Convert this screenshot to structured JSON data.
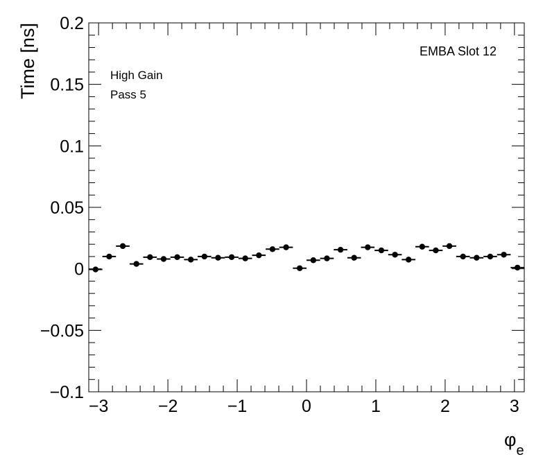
{
  "chart_data": {
    "type": "scatter",
    "title": "",
    "xlabel": "φ",
    "xlabel_sub": "e",
    "ylabel": "Time [ns]",
    "xlim": [
      -3.1416,
      3.1416
    ],
    "ylim": [
      -0.1,
      0.2
    ],
    "x_ticks": [
      -3,
      -2,
      -1,
      0,
      1,
      2,
      3
    ],
    "x_tick_labels": [
      "−3",
      "−2",
      "−1",
      "0",
      "1",
      "2",
      "3"
    ],
    "y_ticks": [
      -0.1,
      -0.05,
      0,
      0.05,
      0.1,
      0.15,
      0.2
    ],
    "y_tick_labels": [
      "−0.1",
      "−0.05",
      "0",
      "0.05",
      "0.1",
      "0.15",
      "0.2"
    ],
    "grid": false,
    "annotations": {
      "top_right": "EMBA Slot 12",
      "line1": "High Gain",
      "line2": "Pass 5"
    },
    "bin_half_width": 0.0982,
    "series": [
      {
        "x": [
          -3.0434,
          -2.8471,
          -2.6507,
          -2.4544,
          -2.258,
          -2.0617,
          -1.8653,
          -1.669,
          -1.4726,
          -1.2763,
          -1.0799,
          -0.8836,
          -0.6872,
          -0.4909,
          -0.2945,
          -0.0982,
          0.0982,
          0.2945,
          0.4909,
          0.6872,
          0.8836,
          1.0799,
          1.2763,
          1.4726,
          1.669,
          1.8653,
          2.0617,
          2.258,
          2.4544,
          2.6507,
          2.8471,
          3.0434
        ],
        "y": [
          -0.0005,
          0.01,
          0.0185,
          0.004,
          0.0095,
          0.008,
          0.0095,
          0.0075,
          0.01,
          0.009,
          0.0095,
          0.0085,
          0.011,
          0.016,
          0.0175,
          0.0005,
          0.007,
          0.0085,
          0.0155,
          0.009,
          0.0175,
          0.015,
          0.0115,
          0.0075,
          0.018,
          0.015,
          0.0185,
          0.01,
          0.009,
          0.01,
          0.0115,
          0.001
        ]
      }
    ]
  }
}
